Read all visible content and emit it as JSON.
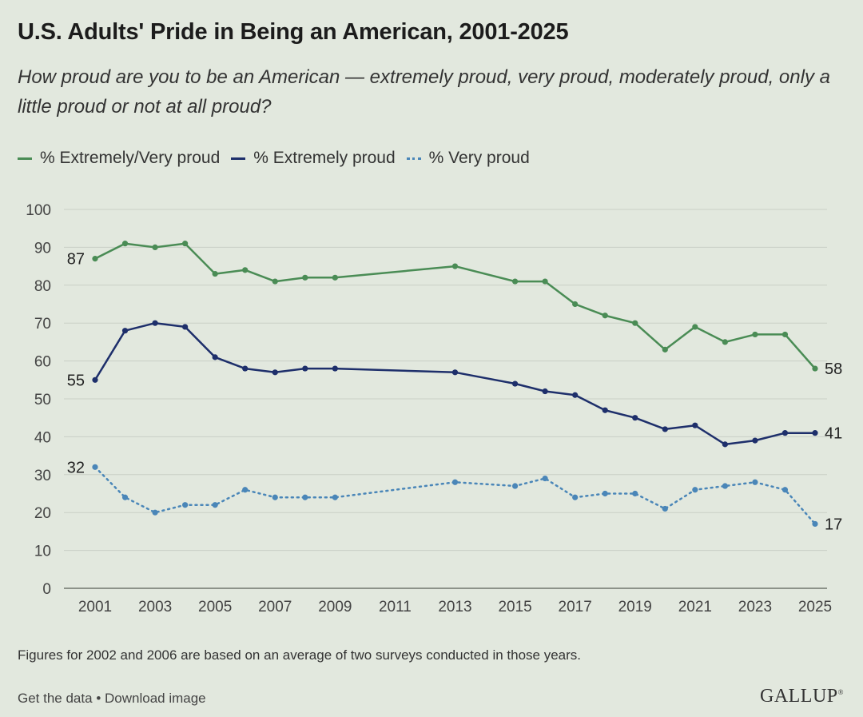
{
  "title": "U.S. Adults' Pride in Being an American, 2001-2025",
  "subtitle": "How proud are you to be an American — extremely proud, very proud, moderately proud, only a little proud or not at all proud?",
  "legend": [
    {
      "label": "% Extremely/Very proud",
      "color": "#4a8c55",
      "style": "solid"
    },
    {
      "label": "% Extremely proud",
      "color": "#1e2f6b",
      "style": "solid"
    },
    {
      "label": "% Very proud",
      "color": "#4a86b8",
      "style": "dotted"
    }
  ],
  "footnote": "Figures for 2002 and 2006 are based on an average of two surveys conducted in those years.",
  "footer": {
    "get_data": "Get the data",
    "separator": "•",
    "download": "Download image"
  },
  "brand": "GALLUP",
  "chart_data": {
    "type": "line",
    "x": [
      2001,
      2002,
      2003,
      2004,
      2005,
      2006,
      2007,
      2008,
      2009,
      2013,
      2015,
      2016,
      2017,
      2018,
      2019,
      2020,
      2021,
      2022,
      2023,
      2024,
      2025
    ],
    "xticks": [
      2001,
      2003,
      2005,
      2007,
      2009,
      2011,
      2013,
      2015,
      2017,
      2019,
      2021,
      2023,
      2025
    ],
    "xlim": [
      2001,
      2025
    ],
    "yticks": [
      0,
      10,
      20,
      30,
      40,
      50,
      60,
      70,
      80,
      90,
      100
    ],
    "ylim": [
      0,
      100
    ],
    "grid": true,
    "legend_position": "top-left",
    "series": [
      {
        "name": "% Extremely/Very proud",
        "color": "#4a8c55",
        "style": "solid",
        "values": [
          87,
          91,
          90,
          91,
          83,
          84,
          81,
          82,
          82,
          85,
          81,
          81,
          75,
          72,
          70,
          63,
          69,
          65,
          67,
          67,
          58
        ],
        "start_label": "87",
        "end_label": "58"
      },
      {
        "name": "% Extremely proud",
        "color": "#1e2f6b",
        "style": "solid",
        "values": [
          55,
          68,
          70,
          69,
          61,
          58,
          57,
          58,
          58,
          57,
          54,
          52,
          51,
          47,
          45,
          42,
          43,
          38,
          39,
          41,
          41
        ],
        "start_label": "55",
        "end_label": "41"
      },
      {
        "name": "% Very proud",
        "color": "#4a86b8",
        "style": "dotted",
        "values": [
          32,
          24,
          20,
          22,
          22,
          26,
          24,
          24,
          24,
          28,
          27,
          29,
          24,
          25,
          25,
          21,
          26,
          27,
          28,
          26,
          17
        ],
        "start_label": "32",
        "end_label": "17"
      }
    ]
  }
}
